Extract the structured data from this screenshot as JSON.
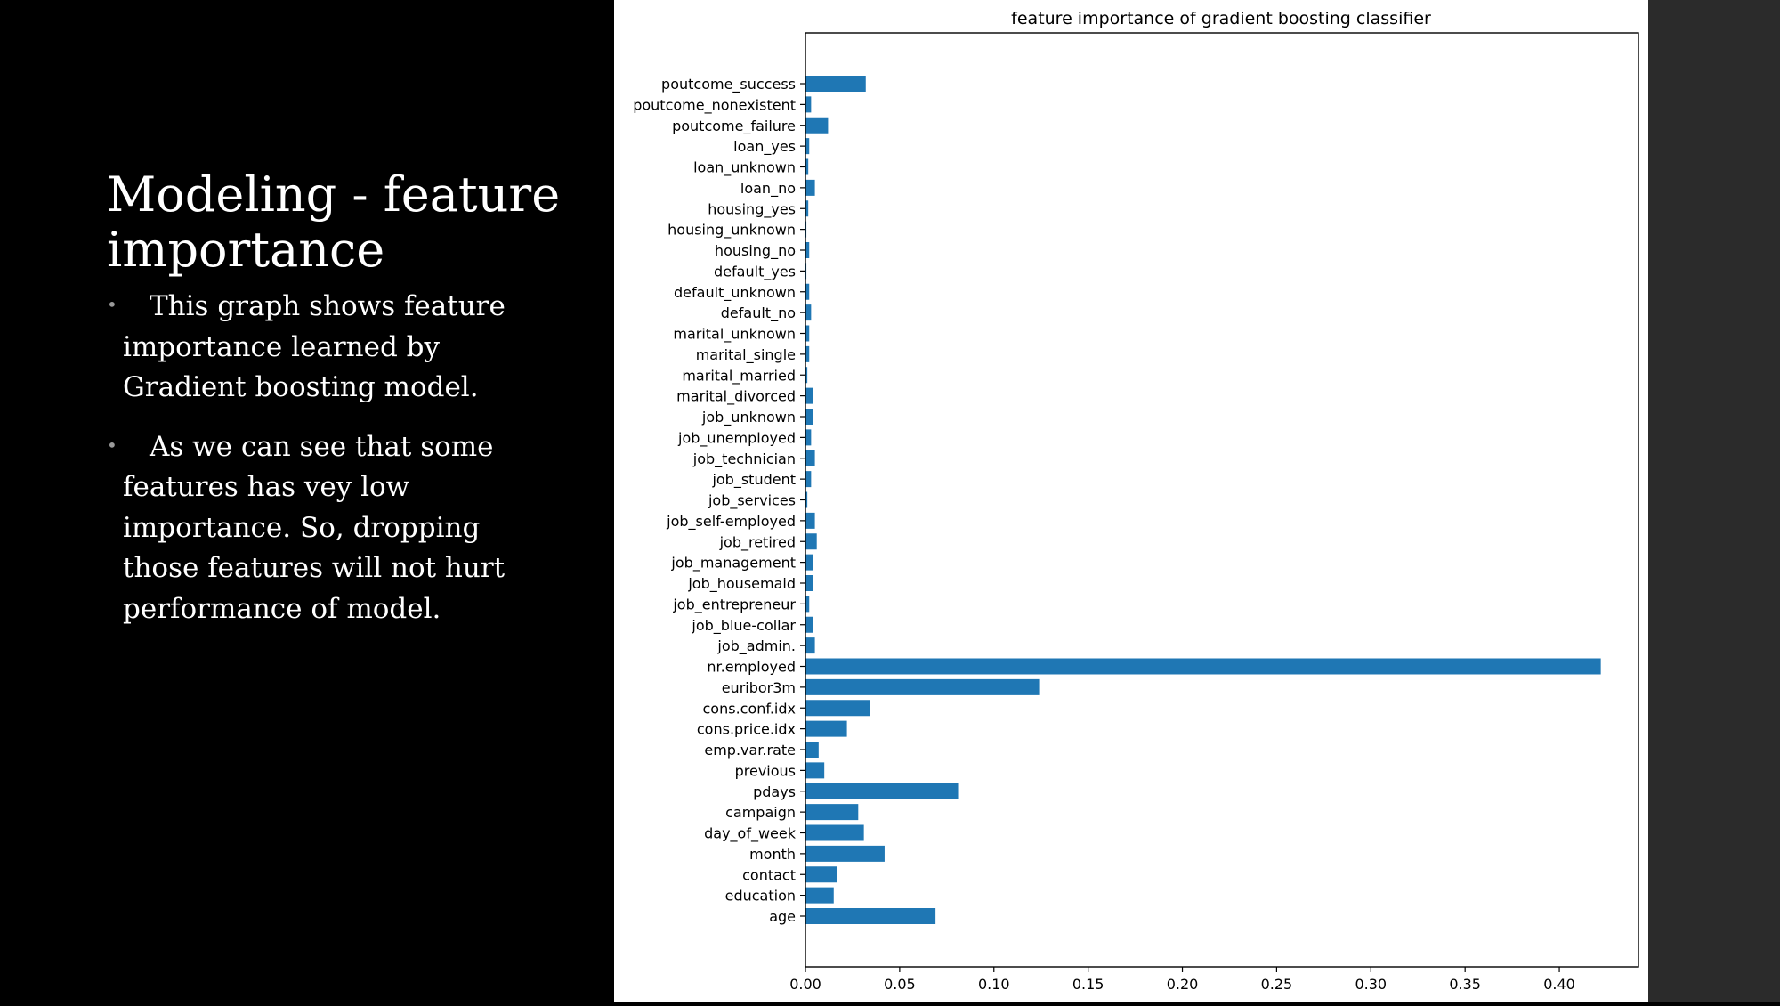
{
  "slide": {
    "title": "Modeling - feature importance",
    "bullets": [
      "This graph shows feature importance learned by Gradient boosting model.",
      "As we can see that some features has vey low importance. So, dropping those features will not hurt performance of model."
    ]
  },
  "colors": {
    "bar": "#1f77b4",
    "background": "#000000",
    "chart_background": "#ffffff",
    "side_strip": "#2b2b2b"
  },
  "chart_data": {
    "type": "bar",
    "orientation": "horizontal",
    "title": "feature importance of gradient boosting classifier",
    "xlabel": "",
    "ylabel": "",
    "xlim": [
      0,
      0.442
    ],
    "xticks": [
      "0.00",
      "0.05",
      "0.10",
      "0.15",
      "0.20",
      "0.25",
      "0.30",
      "0.35",
      "0.40"
    ],
    "categories": [
      "age",
      "education",
      "contact",
      "month",
      "day_of_week",
      "campaign",
      "pdays",
      "previous",
      "emp.var.rate",
      "cons.price.idx",
      "cons.conf.idx",
      "euribor3m",
      "nr.employed",
      "job_admin.",
      "job_blue-collar",
      "job_entrepreneur",
      "job_housemaid",
      "job_management",
      "job_retired",
      "job_self-employed",
      "job_services",
      "job_student",
      "job_technician",
      "job_unemployed",
      "job_unknown",
      "marital_divorced",
      "marital_married",
      "marital_single",
      "marital_unknown",
      "default_no",
      "default_unknown",
      "default_yes",
      "housing_no",
      "housing_unknown",
      "housing_yes",
      "loan_no",
      "loan_unknown",
      "loan_yes",
      "poutcome_failure",
      "poutcome_nonexistent",
      "poutcome_success"
    ],
    "values": [
      0.069,
      0.015,
      0.017,
      0.042,
      0.031,
      0.028,
      0.081,
      0.01,
      0.007,
      0.022,
      0.034,
      0.124,
      0.422,
      0.005,
      0.004,
      0.002,
      0.004,
      0.004,
      0.006,
      0.005,
      0.001,
      0.003,
      0.005,
      0.003,
      0.004,
      0.004,
      0.001,
      0.002,
      0.002,
      0.003,
      0.002,
      0.0005,
      0.002,
      0.0005,
      0.0015,
      0.005,
      0.0015,
      0.002,
      0.012,
      0.003,
      0.032
    ]
  }
}
